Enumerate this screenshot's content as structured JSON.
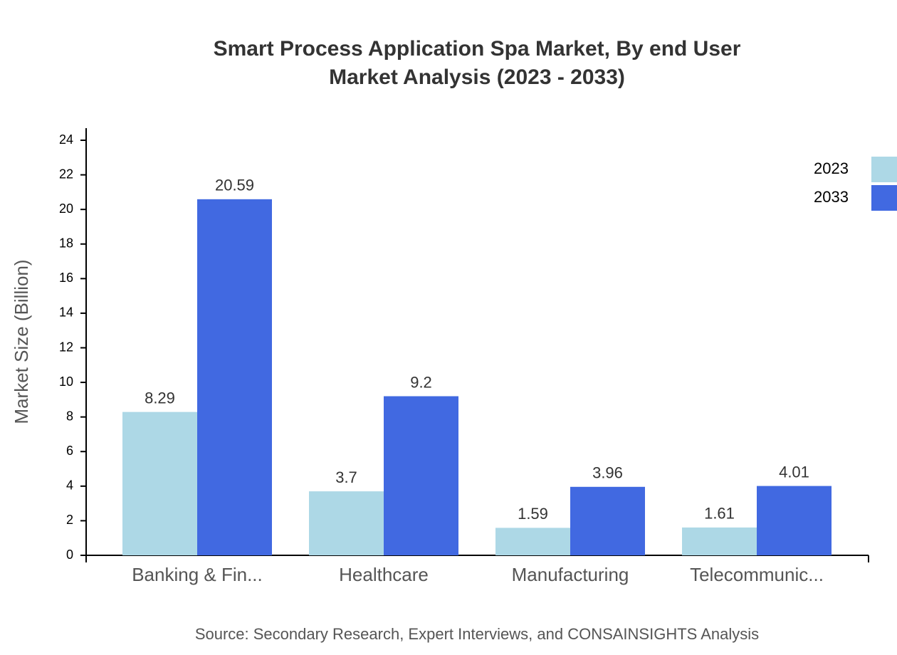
{
  "chart_data": {
    "type": "bar",
    "title": [
      "Smart Process Application Spa Market, By end User",
      "Market Analysis (2023 - 2033)"
    ],
    "y_label": "Market Size (Billion)",
    "source": "Source: Secondary Research, Expert Interviews, and CONSAINSIGHTS Analysis",
    "categories": [
      "Banking & Fin...",
      "Healthcare",
      "Manufacturing",
      "Telecommunic..."
    ],
    "series": [
      {
        "name": "2023",
        "color": "#add8e6",
        "values": [
          8.29,
          3.7,
          1.59,
          1.61
        ]
      },
      {
        "name": "2033",
        "color": "#4169e1",
        "values": [
          20.59,
          9.2,
          3.96,
          4.01
        ]
      }
    ],
    "ylim": [
      0,
      24.7
    ],
    "yticks": [
      0,
      2,
      4,
      6,
      8,
      10,
      12,
      14,
      16,
      18,
      20,
      22,
      24
    ],
    "legend": "top-right",
    "grid": false
  }
}
